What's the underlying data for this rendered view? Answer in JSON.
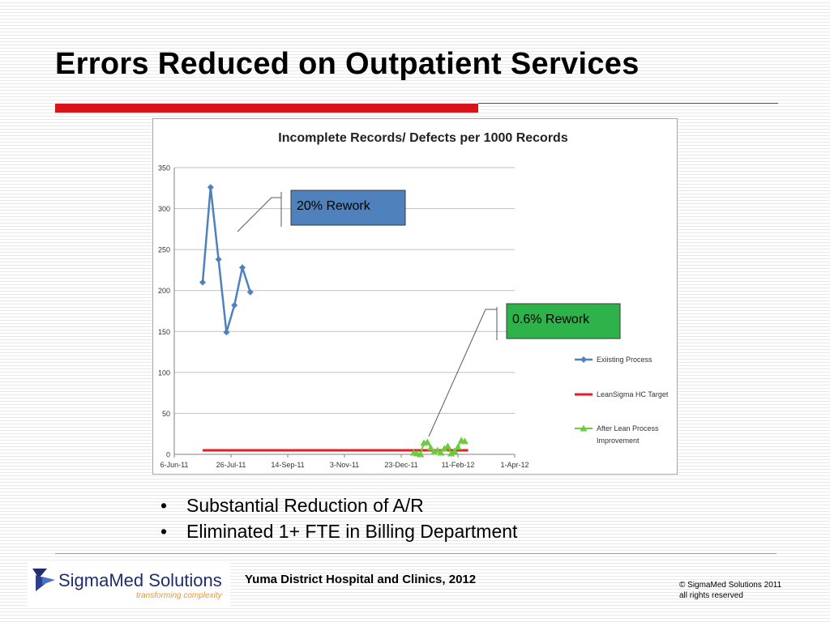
{
  "slide": {
    "title": "Errors Reduced on Outpatient Services",
    "bullets": [
      "Substantial Reduction of A/R",
      "Eliminated 1+ FTE in Billing Department"
    ],
    "footer": "Yuma District Hospital and Clinics, 2012",
    "copyright": [
      "© SigmaMed Solutions 2011",
      "all rights reserved"
    ],
    "logo": {
      "name": "SigmaMed Solutions",
      "tagline": "transforming complexity"
    },
    "colors": {
      "accent_red": "#d7141a",
      "logo_navy": "#1f2f6e",
      "logo_orange": "#e8962e"
    }
  },
  "chart_data": {
    "type": "line",
    "title": "Incomplete Records/ Defects per 1000 Records",
    "xlabel": "",
    "ylabel": "",
    "x_axis_type": "date",
    "xlim": [
      "2011-06-06",
      "2012-04-01"
    ],
    "ylim": [
      0,
      350
    ],
    "x_ticks": [
      "6-Jun-11",
      "26-Jul-11",
      "14-Sep-11",
      "3-Nov-11",
      "23-Dec-11",
      "11-Feb-12",
      "1-Apr-12"
    ],
    "y_ticks": [
      0,
      50,
      100,
      150,
      200,
      250,
      300,
      350
    ],
    "grid": "horizontal",
    "legend_position": "right",
    "series": [
      {
        "name": "Exiisting Process",
        "color": "#4f81bd",
        "marker": "diamond",
        "x": [
          "2011-07-01",
          "2011-07-08",
          "2011-07-15",
          "2011-07-22",
          "2011-07-29",
          "2011-08-05",
          "2011-08-12"
        ],
        "y": [
          210,
          326,
          238,
          149,
          182,
          228,
          198
        ]
      },
      {
        "name": "LeanSigma HC Target",
        "color": "#e31e24",
        "marker": "none",
        "x": [
          "2011-07-01",
          "2012-02-20"
        ],
        "y": [
          5,
          5
        ]
      },
      {
        "name": "After Lean Process Improvement",
        "color": "#6ccc3f",
        "marker": "triangle",
        "x": [
          "2012-01-03",
          "2012-01-06",
          "2012-01-09",
          "2012-01-12",
          "2012-01-15",
          "2012-01-18",
          "2012-01-21",
          "2012-01-24",
          "2012-01-27",
          "2012-01-30",
          "2012-02-02",
          "2012-02-05",
          "2012-02-08",
          "2012-02-11",
          "2012-02-14",
          "2012-02-17"
        ],
        "y": [
          2,
          1,
          0,
          14,
          15,
          8,
          3,
          5,
          2,
          7,
          10,
          1,
          4,
          9,
          17,
          16
        ]
      }
    ],
    "annotations": [
      {
        "text": "20% Rework",
        "fill": "#4f81bd",
        "target": "Exiisting Process"
      },
      {
        "text": "0.6% Rework",
        "fill": "#2db34a",
        "target": "After Lean Process Improvement"
      }
    ]
  }
}
